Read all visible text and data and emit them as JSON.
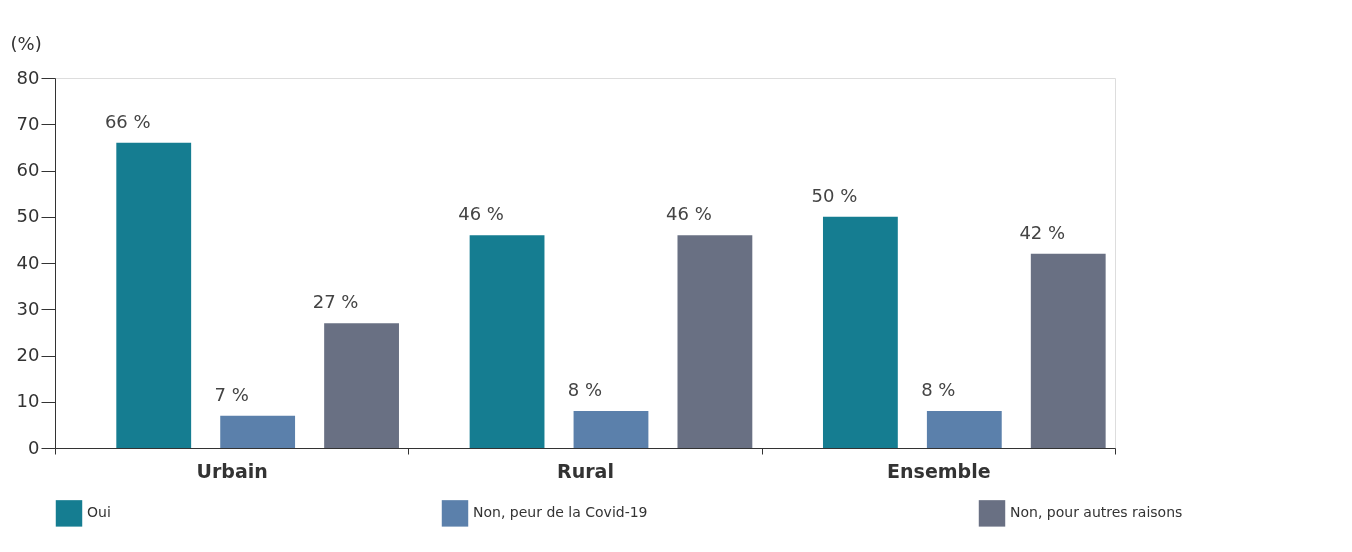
{
  "chart_data": {
    "type": "bar",
    "ylabel": "(%)",
    "categories": [
      "Urbain",
      "Rural",
      "Ensemble"
    ],
    "series": [
      {
        "name": "Oui",
        "color": "#157d91",
        "values": [
          66,
          46,
          50
        ],
        "value_labels": [
          "66 %",
          "46 %",
          "50 %"
        ]
      },
      {
        "name": "Non, peur de la Covid-19",
        "color": "#5b80ab",
        "values": [
          7,
          8,
          8
        ],
        "value_labels": [
          "7 %",
          "8 %",
          "8 %"
        ]
      },
      {
        "name": "Non, pour autres raisons",
        "color": "#697083",
        "values": [
          27,
          46,
          42
        ],
        "value_labels": [
          "27 %",
          "46 %",
          "42 %"
        ]
      }
    ],
    "ylim": [
      0,
      80
    ],
    "yticks": [
      0,
      10,
      20,
      30,
      40,
      50,
      60,
      70,
      80
    ],
    "grid": false,
    "legend": "bottom"
  }
}
